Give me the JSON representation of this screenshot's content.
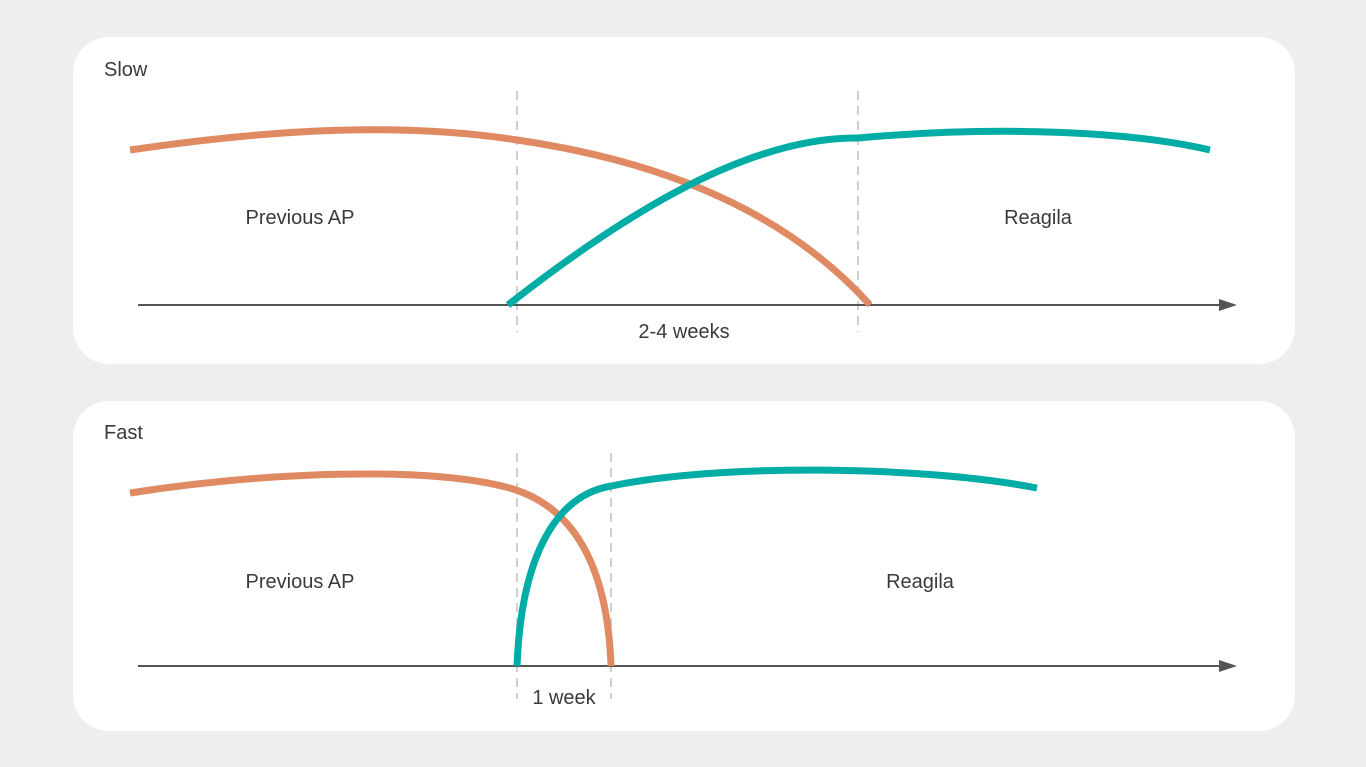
{
  "colors": {
    "background": "#edeef0",
    "panel": "#ffffff",
    "previous_ap_curve": "#e08a63",
    "reagila_curve": "#00aca6",
    "axis": "#555555",
    "guide_line": "#cfcfcf",
    "text": "#3a3a3a"
  },
  "panels": {
    "slow": {
      "title": "Slow",
      "previous_label": "Previous AP",
      "reagila_label": "Reagila",
      "duration_label": "2-4 weeks"
    },
    "fast": {
      "title": "Fast",
      "previous_label": "Previous AP",
      "reagila_label": "Reagila",
      "duration_label": "1 week"
    }
  }
}
